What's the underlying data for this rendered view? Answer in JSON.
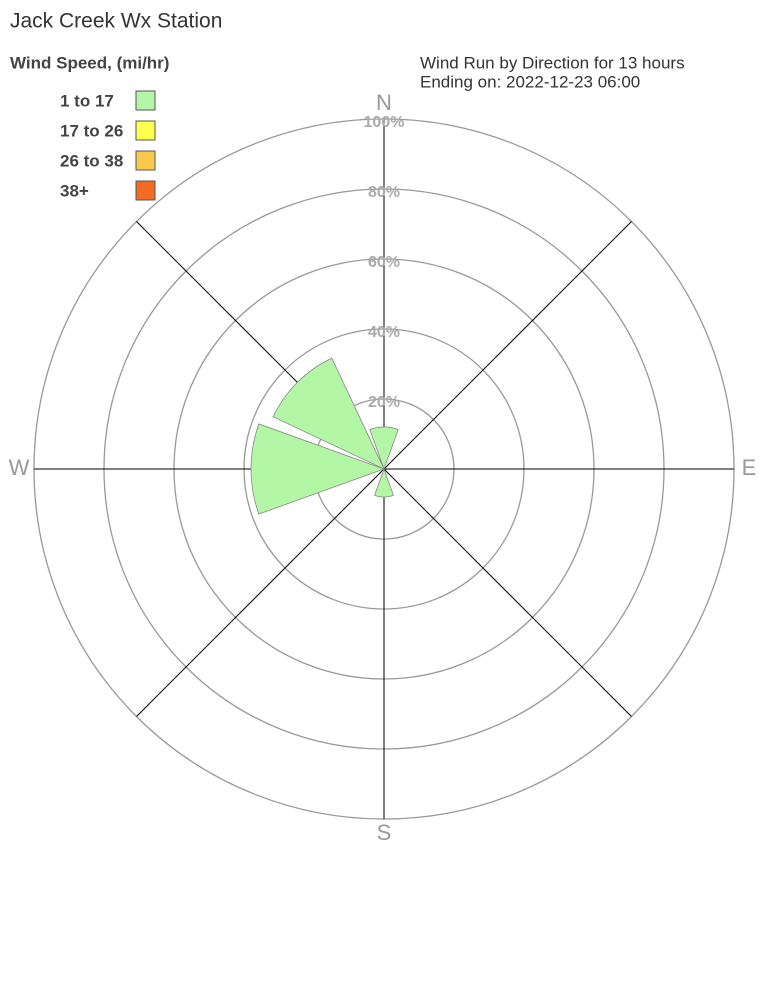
{
  "chart_data": {
    "type": "windrose",
    "title": "Jack Creek Wx Station",
    "legend_title": "Wind Speed, (mi/hr)",
    "subtitle": [
      "Wind Run by Direction for 13 hours",
      "Ending on: 2022-12-23 06:00"
    ],
    "categories": [
      "N",
      null,
      "E",
      null,
      "S",
      null,
      "W",
      null
    ],
    "series": [
      {
        "name": "1 to 17",
        "color": "#b3f7a6",
        "values": [
          12,
          0,
          0,
          0,
          8,
          0,
          38,
          35
        ]
      },
      {
        "name": "17 to 26",
        "color": "#ffff4d",
        "values": [
          0,
          0,
          0,
          0,
          0,
          0,
          0,
          0
        ]
      },
      {
        "name": "26 to 38",
        "color": "#f8c94a",
        "values": [
          0,
          0,
          0,
          0,
          0,
          0,
          0,
          0
        ]
      },
      {
        "name": "38+",
        "color": "#f26c24",
        "values": [
          0,
          0,
          0,
          0,
          0,
          0,
          0,
          0
        ]
      }
    ],
    "rlim": [
      0,
      100
    ],
    "rticks": [
      {
        "value": 20,
        "label": "20%"
      },
      {
        "value": 40,
        "label": "40%"
      },
      {
        "value": 60,
        "label": "60%"
      },
      {
        "value": 80,
        "label": "80%"
      },
      {
        "value": 100,
        "label": "100%"
      }
    ]
  }
}
